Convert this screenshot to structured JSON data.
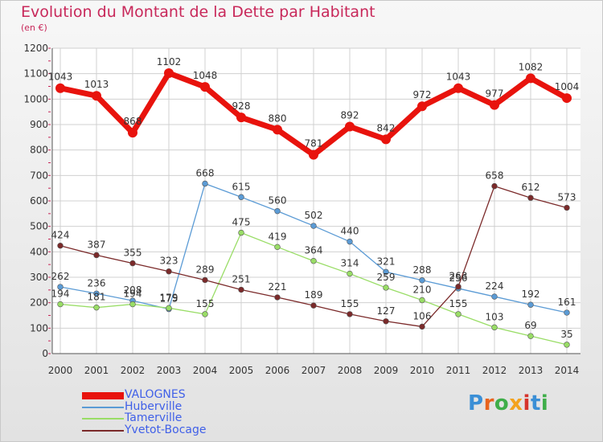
{
  "title": "Evolution du Montant de la Dette par Habitant",
  "subtitle": "(en €)",
  "logo": {
    "text": "Proxiti"
  },
  "colors": {
    "title": "#c8285a",
    "legend_text": "#4060e8",
    "grid": "#d0d0d0",
    "axis_text": "#333333"
  },
  "chart_data": {
    "type": "line",
    "title": "Evolution du Montant de la Dette par Habitant",
    "subtitle": "(en €)",
    "x": [
      "2000",
      "2001",
      "2002",
      "2003",
      "2004",
      "2005",
      "2006",
      "2007",
      "2008",
      "2009",
      "2010",
      "2011",
      "2012",
      "2013",
      "2014"
    ],
    "ylim": [
      0,
      1200
    ],
    "yticks": [
      0,
      100,
      200,
      300,
      400,
      500,
      600,
      700,
      800,
      900,
      1000,
      1100,
      1200
    ],
    "grid": true,
    "legend_position": "bottom-left",
    "series": [
      {
        "name": "VALOGNES",
        "color": "#e8130d",
        "width": 7,
        "marker": 6,
        "values": [
          1043,
          1013,
          868,
          1102,
          1048,
          928,
          880,
          781,
          892,
          842,
          972,
          1043,
          977,
          1082,
          1004
        ],
        "labels": [
          "1043",
          "1013",
          "868",
          "1102",
          "1048",
          "928",
          "880",
          "781",
          "892",
          "842",
          "972",
          "1043",
          "977",
          "1082",
          "1004"
        ]
      },
      {
        "name": "Huberville",
        "color": "#5b9bd5",
        "width": 1.3,
        "marker": 3.4,
        "values": [
          262,
          236,
          208,
          175,
          668,
          615,
          560,
          502,
          440,
          321,
          288,
          256,
          224,
          192,
          161
        ],
        "labels": [
          "262",
          "236",
          "208",
          "175",
          "668",
          "615",
          "560",
          "502",
          "440",
          "321",
          "288",
          "256",
          "224",
          "192",
          "161"
        ]
      },
      {
        "name": "Tamerville",
        "color": "#99dd66",
        "width": 1.3,
        "marker": 3.4,
        "values": [
          194,
          181,
          194,
          179,
          155,
          475,
          419,
          364,
          314,
          259,
          210,
          155,
          103,
          69,
          35
        ],
        "labels": [
          "194",
          "181",
          "194",
          "179",
          "155",
          "475",
          "419",
          "364",
          "314",
          "259",
          "210",
          "155",
          "103",
          "69",
          "35"
        ]
      },
      {
        "name": "Yvetot-Bocage",
        "color": "#7b2a2a",
        "width": 1.3,
        "marker": 3.4,
        "values": [
          424,
          387,
          355,
          323,
          289,
          251,
          221,
          189,
          155,
          127,
          106,
          263,
          658,
          612,
          573
        ],
        "labels": [
          "424",
          "387",
          "355",
          "323",
          "289",
          "251",
          "221",
          "189",
          "155",
          "127",
          "106",
          "263",
          "658",
          "612",
          "573"
        ]
      }
    ]
  }
}
